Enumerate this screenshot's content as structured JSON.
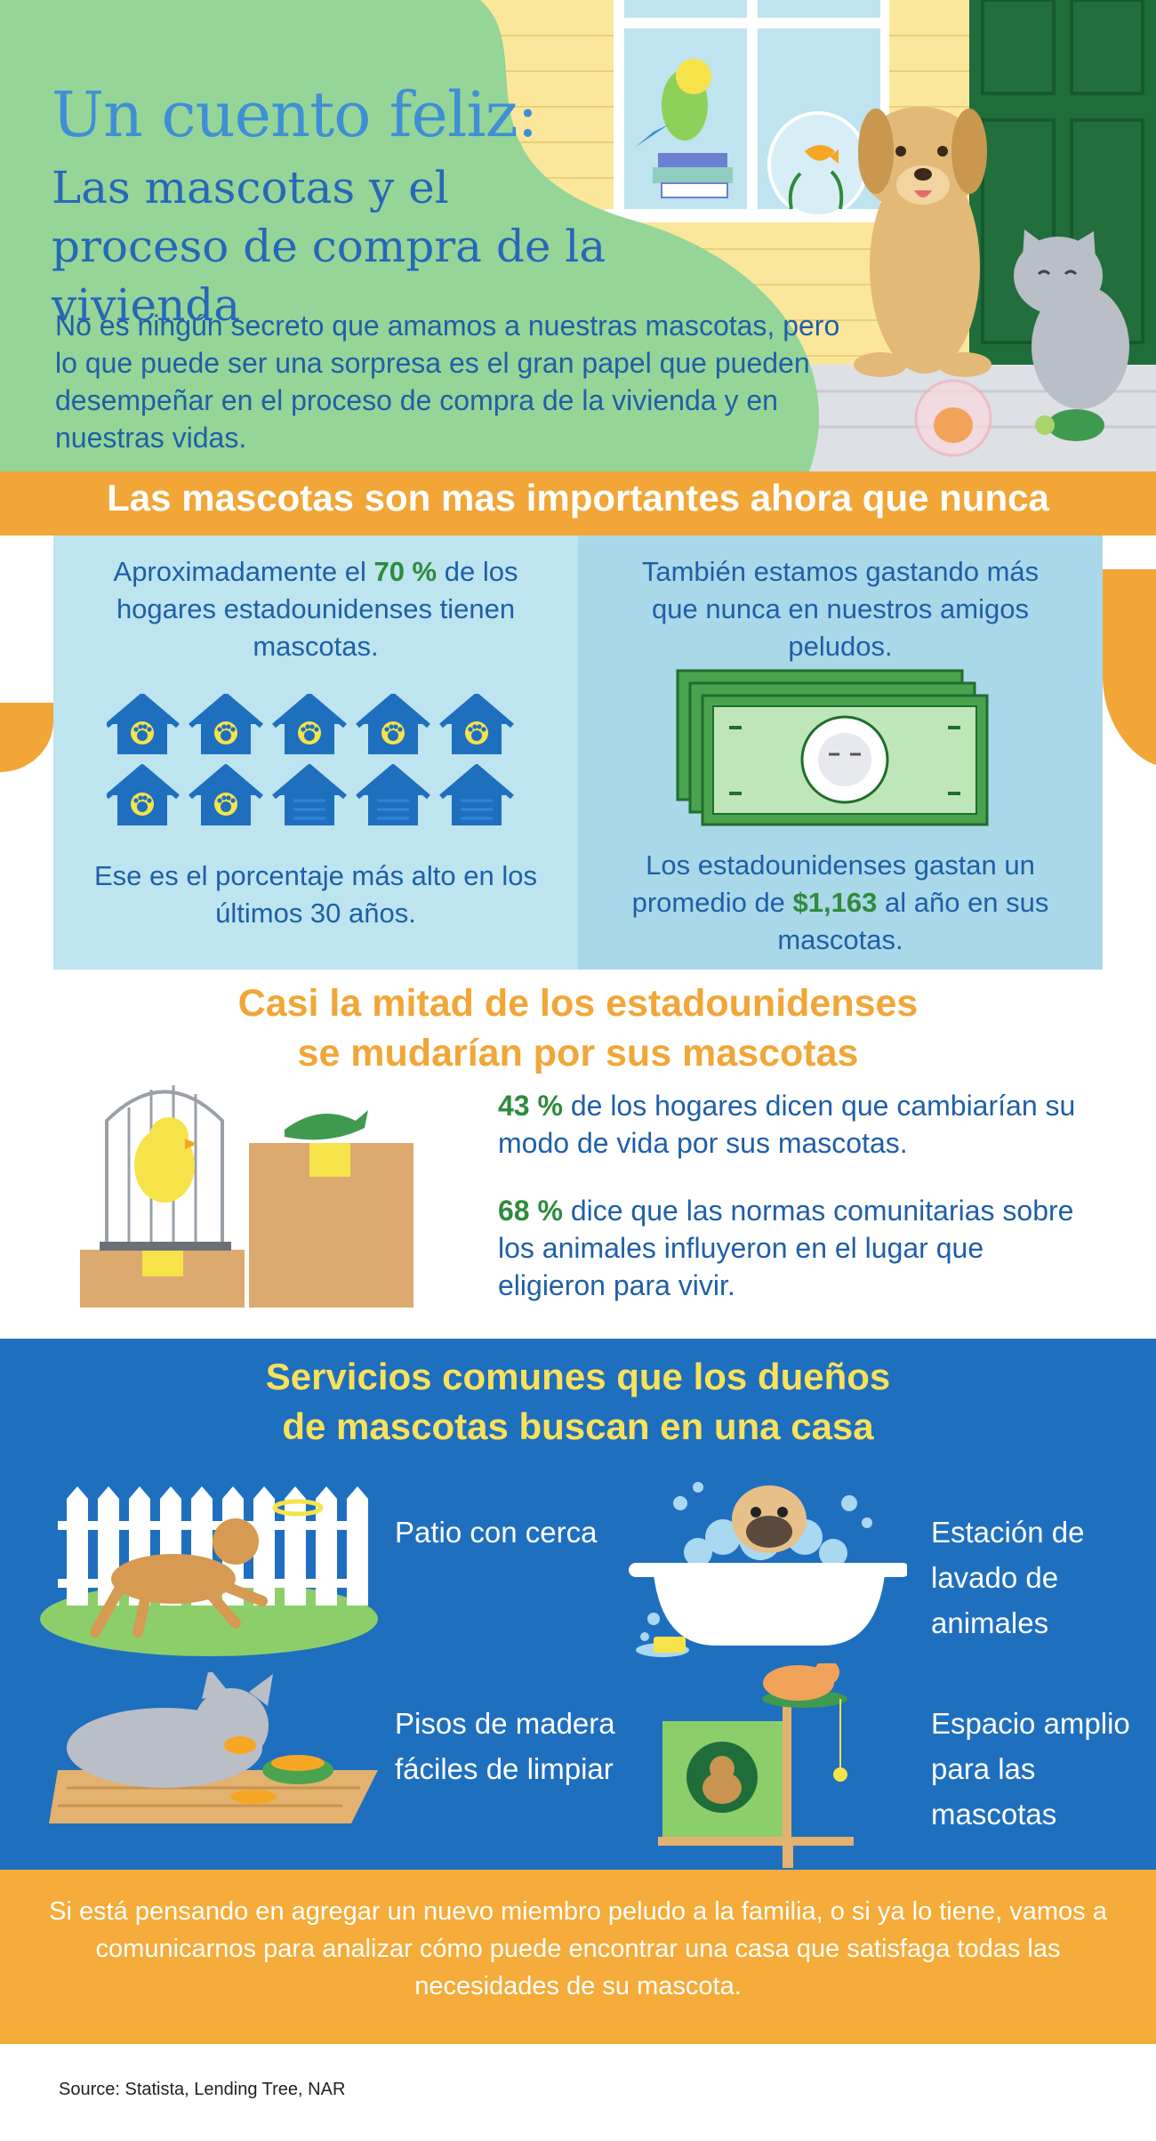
{
  "header": {
    "title_line1": "Un cuento feliz:",
    "title_line2": "Las mascotas y el proceso de compra de la vivienda",
    "intro": "No es ningún secreto que amamos a nuestras mascotas, pero lo que puede ser una sorpresa es el gran papel que pueden desempeñar en el proceso de compra de la vivienda y en nuestras vidas."
  },
  "importance": {
    "title": "Las mascotas son mas importantes ahora que nunca",
    "left": {
      "text_before": "Aproximadamente el ",
      "highlight": "70 %",
      "text_after": " de los hogares estadounidenses tienen mascotas.",
      "footer": "Ese es el porcentaje más alto en los últimos 30 años.",
      "houses_total": 10,
      "houses_with_pets": 7
    },
    "right": {
      "text": "También estamos gastando más que nunca en nuestros amigos peludos.",
      "footer_before": "Los estadounidenses gastan un promedio de ",
      "highlight": "$1,163",
      "footer_after": " al año en sus mascotas."
    }
  },
  "moving": {
    "title_line1": "Casi la mitad de los estadounidenses",
    "title_line2": "se mudarían por sus mascotas",
    "stat1_value": "43 %",
    "stat1_text": " de los hogares dicen que cambiarían su modo de vida por sus mascotas.",
    "stat2_value": "68 %",
    "stat2_text": " dice que las normas comunitarias sobre los animales influyeron en el lugar que eligieron para vivir."
  },
  "services": {
    "title_line1": "Servicios comunes que los dueños",
    "title_line2": "de mascotas buscan en una casa",
    "items": [
      {
        "label": "Patio con cerca",
        "icon": "fenced-yard-dog-icon"
      },
      {
        "label": "Estación de lavado de animales",
        "icon": "dog-bath-icon"
      },
      {
        "label": "Pisos de madera fáciles de limpiar",
        "icon": "cat-wood-floor-icon"
      },
      {
        "label": "Espacio amplio para las mascotas",
        "icon": "cat-tree-icon"
      }
    ]
  },
  "cta": "Si está pensando en agregar un nuevo miembro peludo a la familia, o si ya lo tiene, vamos a comunicarnos para analizar cómo puede encontrar una casa que satisfaga todas las necesidades de su mascota.",
  "source": "Source: Statista, Lending Tree, NAR",
  "colors": {
    "orange": "#f1a637",
    "blue": "#1f6fbf",
    "dark_blue_text": "#1f5fa8",
    "green_highlight": "#2e8b3e",
    "yellow_title": "#f9e15a",
    "light_green": "#95d597"
  }
}
